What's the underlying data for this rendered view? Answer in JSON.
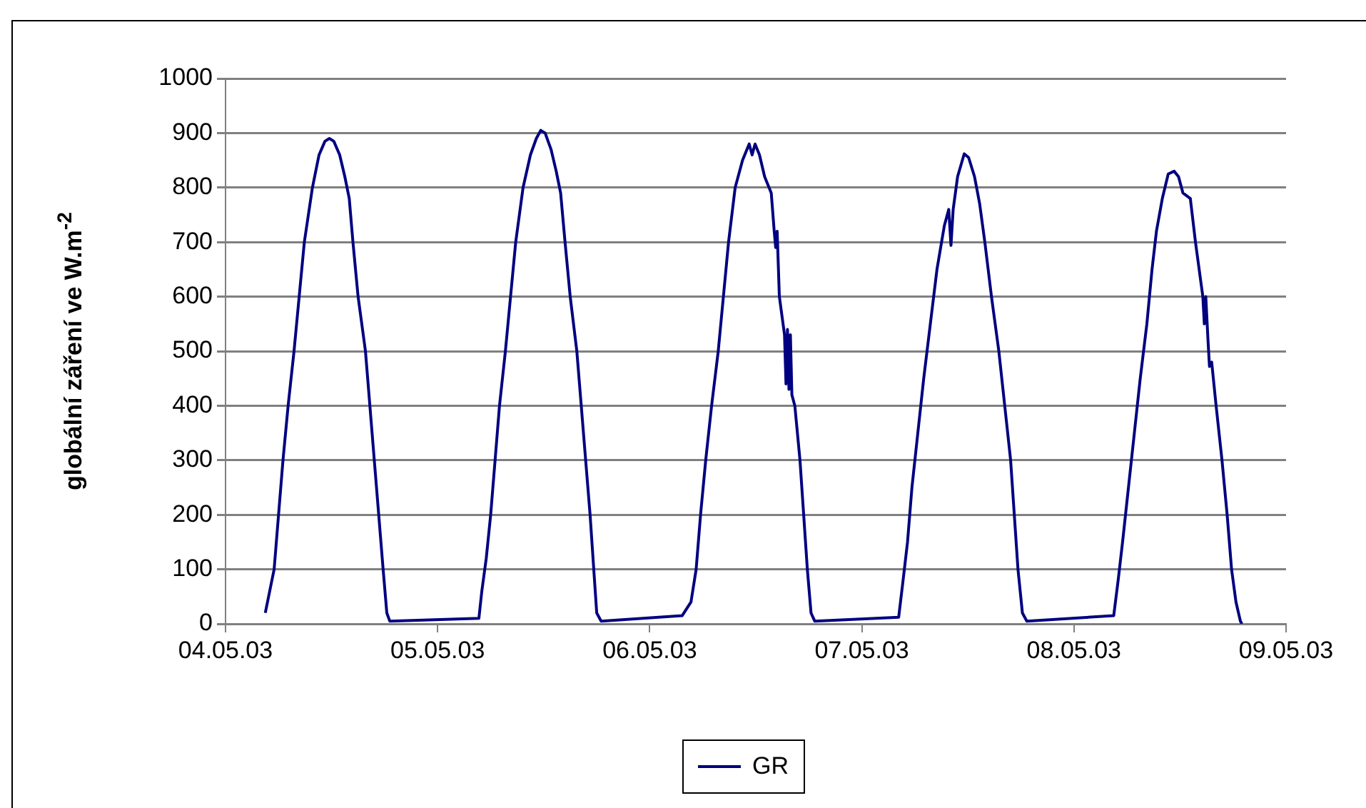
{
  "chart_data": {
    "type": "line",
    "ylabel": "globální záření ve W.m$^{-2}$",
    "xlim": [
      "--05-04",
      "--05-09"
    ],
    "xticks": [
      {
        "value": "--05-04",
        "label": "04.05.03"
      },
      {
        "value": "--05-05",
        "label": "05.05.03"
      },
      {
        "value": "--05-06",
        "label": "06.05.03"
      },
      {
        "value": "--05-07",
        "label": "07.05.03"
      },
      {
        "value": "--05-08",
        "label": "08.05.03"
      },
      {
        "value": "--05-09",
        "label": "09.05.03"
      }
    ],
    "ylim": [
      0,
      1000
    ],
    "yticks": [
      0,
      100,
      200,
      300,
      400,
      500,
      600,
      700,
      800,
      900,
      1000
    ],
    "grid": "y",
    "legend": "bottom",
    "marker": "none",
    "line_style": "solid",
    "x": [
      "--05-04T04:30",
      "--05-04T05:00",
      "--05-04T05:30",
      "--05-04T06:00",
      "--05-04T06:30",
      "--05-04T07:05",
      "--05-04T07:45",
      "--05-04T08:20",
      "--05-04T08:55",
      "--05-04T09:50",
      "--05-04T10:35",
      "--05-04T11:15",
      "--05-04T11:45",
      "--05-04T12:15",
      "--05-04T12:55",
      "--05-04T13:30",
      "--05-04T14:00",
      "--05-04T14:25",
      "--05-04T15:00",
      "--05-04T15:50",
      "--05-04T16:20",
      "--05-04T16:50",
      "--05-04T17:20",
      "--05-04T17:50",
      "--05-04T18:15",
      "--05-04T18:35",
      "--05-05T04:40",
      "--05-05T05:00",
      "--05-05T05:30",
      "--05-05T06:00",
      "--05-05T06:30",
      "--05-05T07:00",
      "--05-05T07:40",
      "--05-05T08:15",
      "--05-05T08:50",
      "--05-05T09:40",
      "--05-05T10:30",
      "--05-05T11:10",
      "--05-05T11:40",
      "--05-05T12:10",
      "--05-05T12:50",
      "--05-05T13:25",
      "--05-05T13:55",
      "--05-05T14:25",
      "--05-05T15:00",
      "--05-05T15:45",
      "--05-05T16:15",
      "--05-05T16:45",
      "--05-05T17:15",
      "--05-05T17:40",
      "--05-05T18:00",
      "--05-05T18:30",
      "--05-06T03:40",
      "--05-06T04:40",
      "--05-06T05:15",
      "--05-06T05:45",
      "--05-06T06:20",
      "--05-06T07:00",
      "--05-06T07:45",
      "--05-06T08:20",
      "--05-06T08:55",
      "--05-06T09:40",
      "--05-06T10:30",
      "--05-06T11:15",
      "--05-06T11:35",
      "--05-06T11:55",
      "--05-06T12:25",
      "--05-06T13:00",
      "--05-06T13:45",
      "--05-06T14:05",
      "--05-06T14:15",
      "--05-06T14:25",
      "--05-06T14:40",
      "--05-06T15:15",
      "--05-06T15:25",
      "--05-06T15:35",
      "--05-06T15:45",
      "--05-06T15:55",
      "--05-06T16:05",
      "--05-06T16:25",
      "--05-06T17:00",
      "--05-06T17:25",
      "--05-06T17:50",
      "--05-06T18:15",
      "--05-06T18:40",
      "--05-07T04:10",
      "--05-07T04:40",
      "--05-07T05:10",
      "--05-07T05:40",
      "--05-07T06:20",
      "--05-07T07:00",
      "--05-07T07:45",
      "--05-07T08:30",
      "--05-07T09:20",
      "--05-07T09:50",
      "--05-07T10:05",
      "--05-07T10:20",
      "--05-07T10:50",
      "--05-07T11:35",
      "--05-07T12:05",
      "--05-07T12:45",
      "--05-07T13:20",
      "--05-07T13:55",
      "--05-07T14:40",
      "--05-07T15:30",
      "--05-07T16:10",
      "--05-07T16:50",
      "--05-07T17:15",
      "--05-07T17:40",
      "--05-07T18:10",
      "--05-07T18:40",
      "--05-08T04:30",
      "--05-08T05:00",
      "--05-08T05:30",
      "--05-08T06:10",
      "--05-08T06:50",
      "--05-08T07:30",
      "--05-08T08:15",
      "--05-08T08:50",
      "--05-08T09:20",
      "--05-08T10:00",
      "--05-08T10:40",
      "--05-08T11:20",
      "--05-08T11:50",
      "--05-08T12:20",
      "--05-08T13:10",
      "--05-08T13:45",
      "--05-08T14:20",
      "--05-08T14:35",
      "--05-08T14:45",
      "--05-08T14:55",
      "--05-08T15:10",
      "--05-08T15:20",
      "--05-08T15:35",
      "--05-08T16:05",
      "--05-08T16:45",
      "--05-08T17:20",
      "--05-08T17:50",
      "--05-08T18:20",
      "--05-08T18:50",
      "--05-08T19:00"
    ],
    "series": [
      {
        "name": "GR",
        "color": "#000080",
        "values": [
          20,
          60,
          100,
          200,
          300,
          400,
          500,
          600,
          700,
          800,
          860,
          885,
          890,
          885,
          860,
          820,
          780,
          700,
          600,
          500,
          400,
          300,
          200,
          100,
          20,
          5,
          10,
          60,
          120,
          200,
          300,
          400,
          500,
          600,
          700,
          800,
          860,
          890,
          905,
          900,
          870,
          830,
          790,
          700,
          600,
          500,
          400,
          300,
          200,
          100,
          20,
          5,
          15,
          40,
          100,
          200,
          300,
          400,
          500,
          600,
          700,
          800,
          850,
          880,
          860,
          880,
          860,
          820,
          790,
          720,
          690,
          720,
          600,
          530,
          440,
          540,
          430,
          530,
          420,
          400,
          300,
          200,
          100,
          20,
          5,
          12,
          80,
          150,
          250,
          350,
          450,
          550,
          650,
          730,
          760,
          694,
          760,
          820,
          862,
          855,
          820,
          770,
          700,
          600,
          500,
          400,
          300,
          200,
          100,
          20,
          5,
          15,
          80,
          150,
          250,
          350,
          450,
          550,
          650,
          720,
          780,
          825,
          830,
          820,
          790,
          780,
          700,
          630,
          600,
          550,
          600,
          520,
          472,
          480,
          400,
          300,
          200,
          100,
          40,
          5,
          0
        ]
      }
    ]
  }
}
